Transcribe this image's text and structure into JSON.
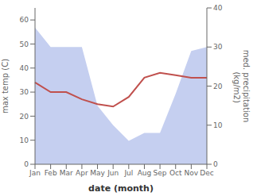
{
  "chart_data": {
    "type": "line",
    "xlabel": "date (month)",
    "ylabel": "max temp (C)",
    "y2label": "med. precipitation\n (kg/m2)",
    "categories": [
      "Jan",
      "Feb",
      "Mar",
      "Apr",
      "May",
      "Jun",
      "Jul",
      "Aug",
      "Sep",
      "Oct",
      "Nov",
      "Dec"
    ],
    "series": [
      {
        "type": "area",
        "color": "#c5cff0",
        "axis": "y2",
        "values": [
          35,
          30,
          30,
          30,
          15,
          10,
          6,
          8,
          8,
          18,
          29,
          30
        ]
      },
      {
        "type": "line",
        "color": "#c0504d",
        "values": [
          34,
          30,
          30,
          27,
          25,
          24,
          28,
          36,
          38,
          37,
          36,
          36
        ]
      }
    ],
    "ylim": [
      0,
      65
    ],
    "yticks": [
      0,
      10,
      20,
      30,
      40,
      50,
      60
    ],
    "y2lim": [
      0,
      40
    ],
    "y2ticks": [
      0,
      10,
      20,
      30,
      40
    ],
    "grid": false
  }
}
